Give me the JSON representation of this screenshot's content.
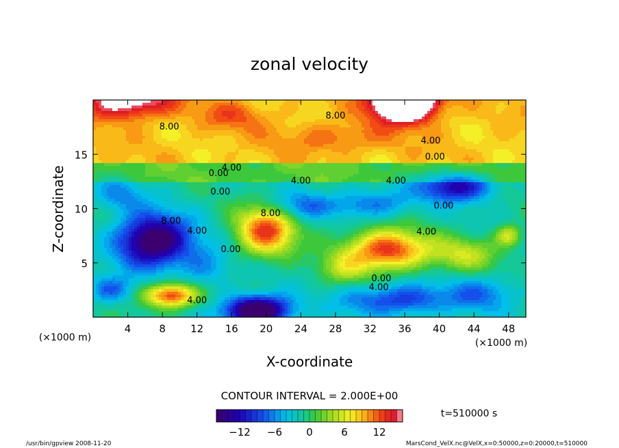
{
  "chart_data": {
    "type": "heatmap",
    "title": "zonal velocity",
    "xlabel": "X-coordinate",
    "ylabel": "Z-coordinate",
    "x_unit_left": "(×1000 m)",
    "x_unit_right": "(×1000 m)",
    "xlim": [
      0,
      50
    ],
    "ylim": [
      0,
      20
    ],
    "x_ticks": [
      4,
      8,
      12,
      16,
      20,
      24,
      28,
      32,
      36,
      40,
      44,
      48
    ],
    "x_tick_labels": [
      "4",
      "8",
      "12",
      "16",
      "20",
      "24",
      "28",
      "32",
      "36",
      "40",
      "44",
      "48"
    ],
    "y_ticks": [
      5,
      10,
      15
    ],
    "y_tick_labels": [
      "5",
      "10",
      "15"
    ],
    "contour_interval_text": "CONTOUR INTERVAL = 2.000E+00",
    "contour_labels": [
      {
        "x": 8.8,
        "z": 17.3,
        "text": "8.00"
      },
      {
        "x": 28.0,
        "z": 18.3,
        "text": "8.00"
      },
      {
        "x": 39.0,
        "z": 16.0,
        "text": "4.00"
      },
      {
        "x": 39.5,
        "z": 14.5,
        "text": "0.00"
      },
      {
        "x": 14.5,
        "z": 13.0,
        "text": "0.00"
      },
      {
        "x": 16.0,
        "z": 13.5,
        "text": "4.00"
      },
      {
        "x": 24.0,
        "z": 12.3,
        "text": "4.00"
      },
      {
        "x": 35.0,
        "z": 12.3,
        "text": "4.00"
      },
      {
        "x": 14.7,
        "z": 11.3,
        "text": "0.00"
      },
      {
        "x": 20.5,
        "z": 9.3,
        "text": "8.00"
      },
      {
        "x": 9.0,
        "z": 8.6,
        "text": "8.00"
      },
      {
        "x": 12.0,
        "z": 7.7,
        "text": "4.00"
      },
      {
        "x": 40.5,
        "z": 10.0,
        "text": "0.00"
      },
      {
        "x": 38.5,
        "z": 7.6,
        "text": "4.00"
      },
      {
        "x": 15.9,
        "z": 6.0,
        "text": "0.00"
      },
      {
        "x": 33.3,
        "z": 3.3,
        "text": "0.00"
      },
      {
        "x": 33.0,
        "z": 2.5,
        "text": "4.00"
      },
      {
        "x": 12.0,
        "z": 1.3,
        "text": "4.00"
      }
    ],
    "colorbar": {
      "range": [
        -16,
        16
      ],
      "step": 1,
      "ticks": [
        -12,
        -6,
        0,
        6,
        12
      ],
      "tick_labels": [
        "−12",
        "−6",
        "0",
        "6",
        "12"
      ]
    },
    "time_label": "t=510000 s",
    "footer_left": "/usr/bin/gpview  2008-11-20",
    "footer_right": "MarsCond_VelX.nc@VelX,x=0:50000,z=0:20000,t=510000",
    "field_features": [
      {
        "x": 36,
        "z": 20,
        "amp": 22,
        "sx": 3.5,
        "sz": 1.8
      },
      {
        "x": 4,
        "z": 20,
        "amp": 10,
        "sx": 5,
        "sz": 1.6
      },
      {
        "x": 16,
        "z": 18.5,
        "amp": 3,
        "sx": 4,
        "sz": 1.3
      },
      {
        "x": 28,
        "z": 16.5,
        "amp": 3,
        "sx": 6,
        "sz": 1.4
      },
      {
        "x": 7,
        "z": 7.0,
        "amp": -17,
        "sx": 4,
        "sz": 2.3
      },
      {
        "x": 20,
        "z": 8.0,
        "amp": 14,
        "sx": 3.3,
        "sz": 2.3
      },
      {
        "x": 34,
        "z": 6.2,
        "amp": 15,
        "sx": 4.6,
        "sz": 1.8
      },
      {
        "x": 29,
        "z": 4.5,
        "amp": 5,
        "sx": 3,
        "sz": 1.5
      },
      {
        "x": 19,
        "z": 0.6,
        "amp": -19,
        "sx": 3.5,
        "sz": 1.3
      },
      {
        "x": 9,
        "z": 2.0,
        "amp": 15,
        "sx": 3,
        "sz": 1.1
      },
      {
        "x": 25,
        "z": 10.2,
        "amp": -6,
        "sx": 5,
        "sz": 1.3
      },
      {
        "x": 33,
        "z": 10.5,
        "amp": -5,
        "sx": 4,
        "sz": 1.3
      },
      {
        "x": 42,
        "z": 12.0,
        "amp": -11,
        "sx": 4,
        "sz": 1.3
      },
      {
        "x": 3,
        "z": 11.2,
        "amp": -4,
        "sx": 3,
        "sz": 1.5
      },
      {
        "x": 35,
        "z": 1.6,
        "amp": -8,
        "sx": 6,
        "sz": 1.4
      },
      {
        "x": 45,
        "z": 2.2,
        "amp": -5,
        "sx": 4,
        "sz": 1.6
      },
      {
        "x": 2,
        "z": 2.5,
        "amp": -6,
        "sx": 2.5,
        "sz": 1.2
      },
      {
        "x": 43,
        "z": 5.8,
        "amp": 6,
        "sx": 4,
        "sz": 1.6
      },
      {
        "x": 48,
        "z": 7.5,
        "amp": 7,
        "sx": 1.5,
        "sz": 1.0
      },
      {
        "x": 27,
        "z": 9.5,
        "amp": 2,
        "sx": 2,
        "sz": 1.5
      },
      {
        "x": 13,
        "z": 4.5,
        "amp": -4,
        "sx": 3,
        "sz": 2
      }
    ]
  }
}
